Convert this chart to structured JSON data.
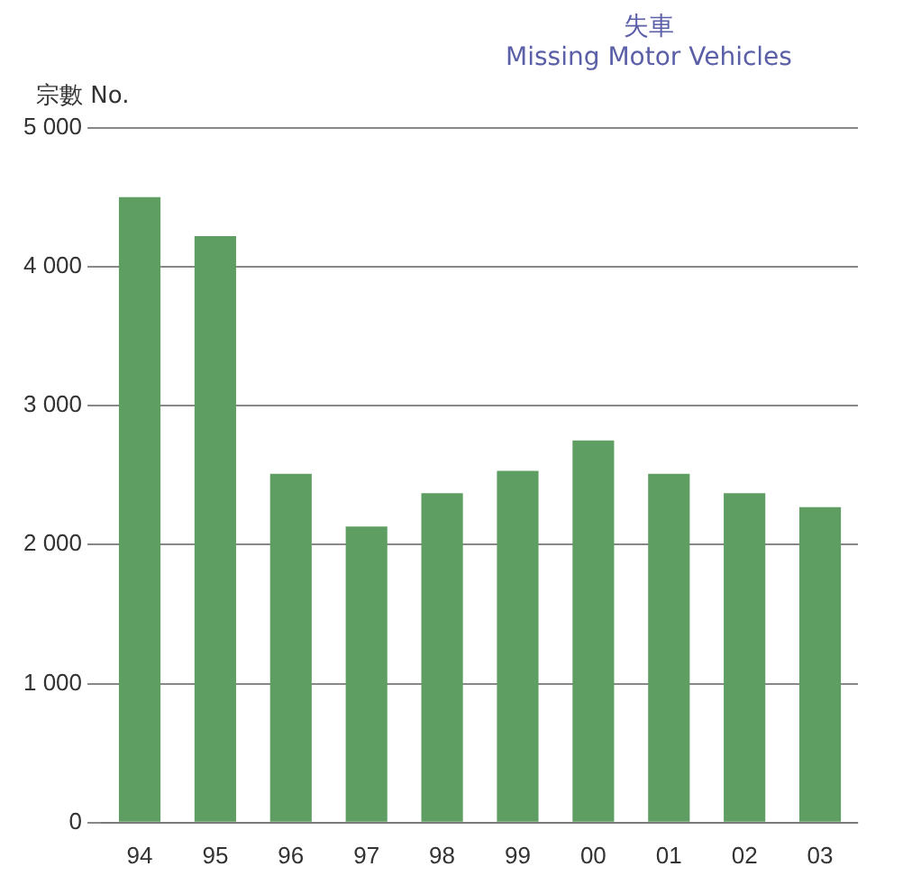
{
  "chart_data": {
    "type": "bar",
    "title": "失車",
    "subtitle": "Missing Motor Vehicles",
    "ylabel": "宗數 No.",
    "categories": [
      "94",
      "95",
      "96",
      "97",
      "98",
      "99",
      "00",
      "01",
      "02",
      "03"
    ],
    "values": [
      4500,
      4220,
      2510,
      2130,
      2370,
      2530,
      2750,
      2510,
      2370,
      2270
    ],
    "color": "#5f9e62",
    "ylim": [
      0,
      5000
    ],
    "yticks": [
      0,
      {
        "value": 1000,
        "label": "1 000"
      },
      {
        "value": 2000,
        "label": "2 000"
      },
      {
        "value": 3000,
        "label": "3 000"
      },
      {
        "value": 4000,
        "label": "4 000"
      },
      {
        "value": 5000,
        "label": "5 000"
      }
    ],
    "grid": "y",
    "legend": false
  }
}
